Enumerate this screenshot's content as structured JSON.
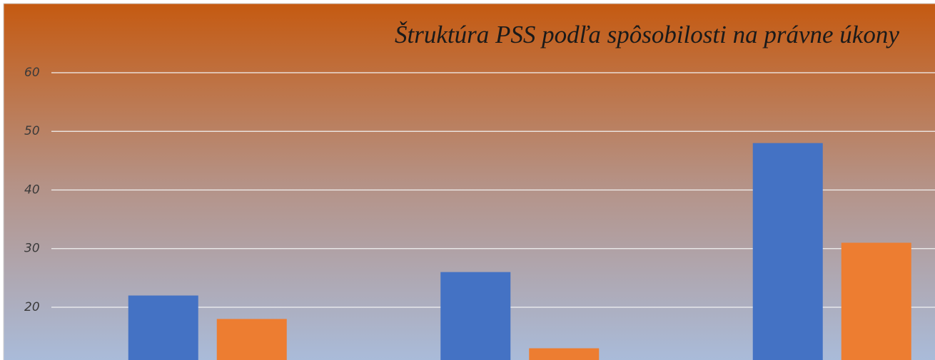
{
  "chart_data": {
    "type": "bar",
    "title": "Štruktúra PSS podľa spôsobilosti na právne úkony",
    "series": [
      {
        "color": "#4472c4",
        "values": [
          22,
          26,
          48
        ]
      },
      {
        "color": "#ed7d31",
        "values": [
          18,
          13,
          31
        ]
      }
    ],
    "ylim": [
      11,
      60
    ],
    "yticks": [
      20,
      30,
      40,
      50,
      60
    ],
    "grid": true
  }
}
